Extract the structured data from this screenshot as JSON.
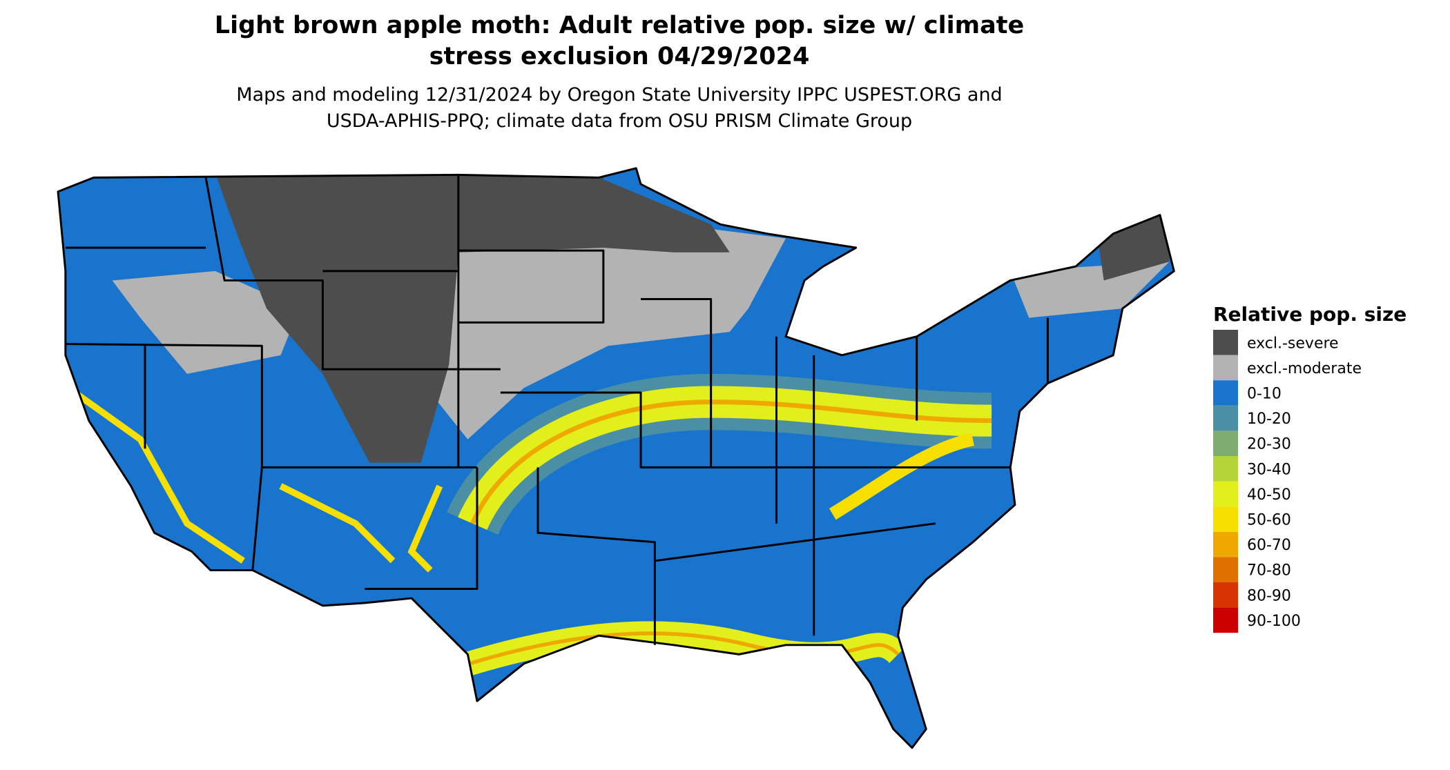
{
  "header": {
    "title": [
      "Light brown apple moth: Adult relative pop. size w/ climate",
      "stress exclusion 04/29/2024"
    ],
    "subtitle": [
      "Maps and modeling 12/31/2024 by Oregon State University IPPC USPEST.ORG and",
      "USDA-APHIS-PPQ; climate data from OSU PRISM Climate Group"
    ]
  },
  "legend": {
    "title": "Relative pop. size",
    "items": [
      {
        "label": "excl.-severe",
        "color": "#4d4d4d"
      },
      {
        "label": "excl.-moderate",
        "color": "#b3b3b3"
      },
      {
        "label": "0-10",
        "color": "#1874cd"
      },
      {
        "label": "10-20",
        "color": "#4a8fa3"
      },
      {
        "label": "20-30",
        "color": "#7fad6f"
      },
      {
        "label": "30-40",
        "color": "#b4d43a"
      },
      {
        "label": "40-50",
        "color": "#e2ef1a"
      },
      {
        "label": "50-60",
        "color": "#f7e000"
      },
      {
        "label": "60-70",
        "color": "#eea800"
      },
      {
        "label": "70-80",
        "color": "#e07000"
      },
      {
        "label": "80-90",
        "color": "#d63400"
      },
      {
        "label": "90-100",
        "color": "#cc0000"
      }
    ]
  }
}
